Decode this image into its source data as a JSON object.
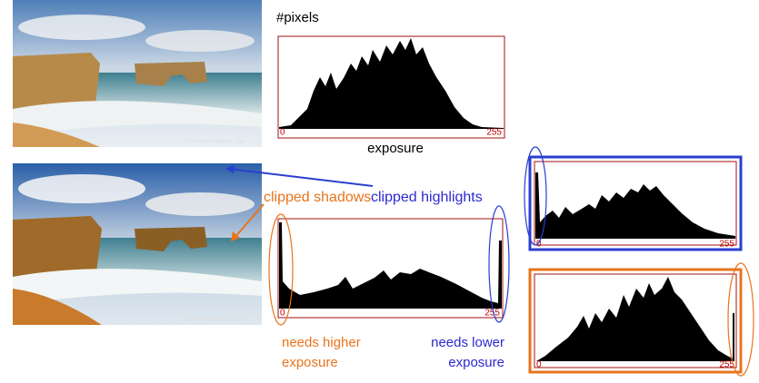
{
  "top_histogram": {
    "axis_label": "#pixels",
    "min_label": "0",
    "max_label": "255",
    "x_label": "exposure"
  },
  "middle_histogram": {
    "min_label": "0",
    "max_label": "255"
  },
  "right_top_histogram": {
    "min_label": "0",
    "max_label": "255"
  },
  "right_bottom_histogram": {
    "min_label": "0",
    "max_label": "255"
  },
  "annotations": {
    "clipped_shadows": "clipped shadows",
    "clipped_highlights": "clipped highlights",
    "needs_higher": [
      "needs higher",
      "exposure"
    ],
    "needs_lower": [
      "needs lower",
      "exposure"
    ]
  },
  "photo_credit": "© 2004 Vincent Brobaet, 123di"
}
